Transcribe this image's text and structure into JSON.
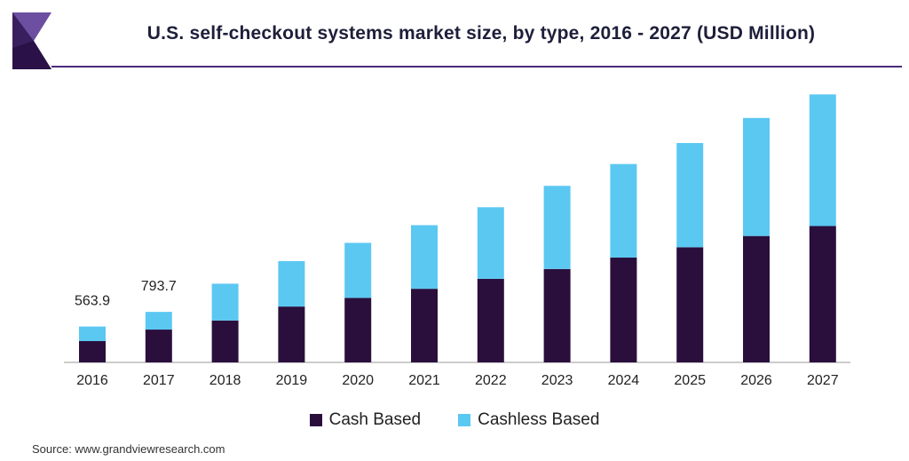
{
  "header": {
    "title": "U.S. self-checkout systems market size, by type, 2016 - 2027 (USD Million)"
  },
  "colors": {
    "cash": "#2a0f3d",
    "cashless": "#5bc8f2",
    "accent": "#4a2b7a"
  },
  "chart_data": {
    "type": "bar",
    "stacked": true,
    "title": "U.S. self-checkout systems market size, by type, 2016 - 2027 (USD Million)",
    "xlabel": "",
    "ylabel": "",
    "ylim": [
      0,
      4300
    ],
    "grid": false,
    "legend_position": "bottom",
    "categories": [
      "2016",
      "2017",
      "2018",
      "2019",
      "2020",
      "2021",
      "2022",
      "2023",
      "2024",
      "2025",
      "2026",
      "2027"
    ],
    "series": [
      {
        "name": "Cash Based",
        "values": [
          335,
          516,
          659,
          878,
          1015,
          1157,
          1314,
          1468,
          1648,
          1810,
          1987,
          2143
        ]
      },
      {
        "name": "Cashless Based",
        "values": [
          229,
          278,
          578,
          714,
          864,
          1000,
          1125,
          1307,
          1470,
          1638,
          1855,
          2069
        ]
      }
    ],
    "data_labels": [
      {
        "category": "2016",
        "text": "563.9"
      },
      {
        "category": "2017",
        "text": "793.7"
      }
    ]
  },
  "legend": {
    "items": [
      {
        "label": "Cash Based"
      },
      {
        "label": "Cashless Based"
      }
    ]
  },
  "footer": {
    "source": "Source: www.grandviewresearch.com"
  }
}
